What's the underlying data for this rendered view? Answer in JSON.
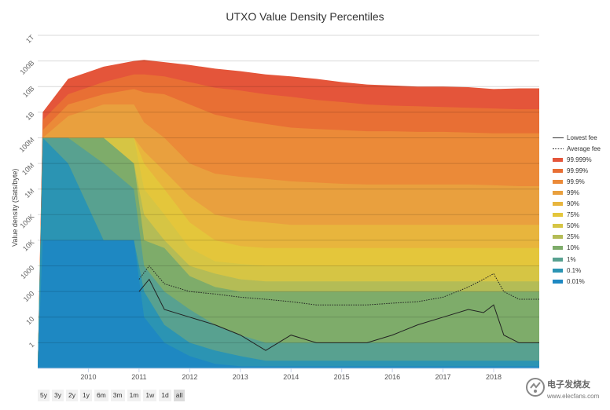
{
  "chart_data": {
    "type": "area",
    "title": "UTXO Value Density Percentiles",
    "ylabel": "Value density (Sats/byte)",
    "xlabel": "",
    "yscale": "log",
    "ylim": [
      0.1,
      1000000000000
    ],
    "y_ticks": [
      {
        "label": "1",
        "value": 1
      },
      {
        "label": "10",
        "value": 10
      },
      {
        "label": "100",
        "value": 100
      },
      {
        "label": "1000",
        "value": 1000
      },
      {
        "label": "10K",
        "value": 10000
      },
      {
        "label": "100K",
        "value": 100000
      },
      {
        "label": "1M",
        "value": 1000000
      },
      {
        "label": "10M",
        "value": 10000000
      },
      {
        "label": "100M",
        "value": 100000000
      },
      {
        "label": "1B",
        "value": 1000000000
      },
      {
        "label": "10B",
        "value": 10000000000
      },
      {
        "label": "100B",
        "value": 100000000000
      },
      {
        "label": "1T",
        "value": 1000000000000
      }
    ],
    "xlim": [
      2009.0,
      2018.9
    ],
    "x_ticks": [
      "2010",
      "2011",
      "2012",
      "2013",
      "2014",
      "2015",
      "2016",
      "2017",
      "2018"
    ],
    "x_tick_values": [
      2010,
      2011,
      2012,
      2013,
      2014,
      2015,
      2016,
      2017,
      2018
    ],
    "sample_years": [
      2009.0,
      2009.1,
      2009.6,
      2010.3,
      2010.9,
      2011.1,
      2011.5,
      2012.0,
      2012.5,
      2013.0,
      2013.5,
      2014.0,
      2014.5,
      2015.0,
      2015.5,
      2016.0,
      2016.5,
      2017.0,
      2017.5,
      2018.0,
      2018.5,
      2018.9
    ],
    "bands": [
      {
        "name": "99.999%",
        "color": "#e4553a",
        "values": [
          0.1,
          1000000000,
          20000000000,
          60000000000,
          100000000000,
          110000000000,
          90000000000,
          70000000000,
          50000000000,
          40000000000,
          30000000000,
          25000000000,
          20000000000,
          15000000000,
          12000000000,
          11000000000,
          10000000000,
          10000000000,
          9500000000,
          8000000000,
          8500000000,
          8500000000
        ]
      },
      {
        "name": "99.99%",
        "color": "#e86f34",
        "values": [
          0.1,
          500000000,
          5000000000,
          15000000000,
          30000000000,
          30000000000,
          25000000000,
          15000000000,
          9000000000,
          7000000000,
          5000000000,
          4000000000,
          3000000000,
          2500000000,
          2000000000,
          1800000000,
          1700000000,
          1600000000,
          1500000000,
          1400000000,
          1300000000,
          1300000000
        ]
      },
      {
        "name": "99.9%",
        "color": "#eb8a38",
        "values": [
          0.1,
          200000000,
          2000000000,
          5000000000,
          8000000000,
          6000000000,
          5000000000,
          2000000000,
          800000000,
          500000000,
          350000000,
          250000000,
          220000000,
          200000000,
          180000000,
          180000000,
          170000000,
          170000000,
          160000000,
          150000000,
          150000000,
          150000000
        ]
      },
      {
        "name": "99%",
        "color": "#e9a03e",
        "values": [
          0.1,
          100000000,
          700000000,
          2000000000,
          2000000000,
          400000000,
          100000000,
          10000000,
          4000000,
          3000000,
          2500000,
          2000000,
          1800000,
          1600000,
          1500000,
          1500000,
          1500000,
          1500000,
          1500000,
          1400000,
          1300000,
          1300000
        ]
      },
      {
        "name": "90%",
        "color": "#e8b53d",
        "values": [
          0.1,
          100000000,
          100000000,
          100000000,
          100000000,
          30000000,
          5000000,
          500000,
          100000,
          60000,
          50000,
          40000,
          40000,
          40000,
          40000,
          40000,
          40000,
          40000,
          40000,
          40000,
          40000,
          40000
        ]
      },
      {
        "name": "75%",
        "color": "#e4c63b",
        "values": [
          0.1,
          100000000,
          100000000,
          100000000,
          100000000,
          10000000,
          1000000,
          50000,
          10000,
          6000,
          5000,
          5000,
          5000,
          5000,
          5000,
          5000,
          5000,
          5000,
          5000,
          5000,
          5000,
          5000
        ]
      },
      {
        "name": "50%",
        "color": "#d6c544",
        "values": [
          0.1,
          100000000,
          100000000,
          100000000,
          100000000,
          1000000,
          100000,
          5000,
          1500,
          1200,
          1000,
          1000,
          1000,
          1000,
          1000,
          1000,
          1000,
          1000,
          1000,
          1000,
          1000,
          1000
        ]
      },
      {
        "name": "25%",
        "color": "#b4bc56",
        "values": [
          0.1,
          100000000,
          100000000,
          100000000,
          10000000,
          100000,
          10000,
          1000,
          500,
          300,
          250,
          250,
          250,
          250,
          250,
          250,
          250,
          250,
          250,
          250,
          250,
          250
        ]
      },
      {
        "name": "10%",
        "color": "#7eac6a",
        "values": [
          0.1,
          100000000,
          100000000,
          100000000,
          10000000,
          10000,
          5000,
          400,
          150,
          100,
          100,
          100,
          100,
          100,
          100,
          100,
          100,
          100,
          100,
          100,
          100,
          100
        ]
      },
      {
        "name": "1%",
        "color": "#58a190",
        "values": [
          0.1,
          100000000,
          100000000,
          10000000,
          1000000,
          1000,
          100,
          20,
          5,
          2,
          1,
          1,
          1,
          1,
          1,
          1,
          1,
          1,
          1,
          1,
          1,
          1
        ]
      },
      {
        "name": "0.1%",
        "color": "#2b94b3",
        "values": [
          0.1,
          100000000,
          10000000,
          10000,
          10000,
          100,
          5,
          1,
          0.5,
          0.3,
          0.2,
          0.2,
          0.2,
          0.2,
          0.2,
          0.2,
          0.2,
          0.2,
          0.2,
          0.2,
          0.2,
          0.2
        ]
      },
      {
        "name": "0.01%",
        "color": "#1e88c2",
        "values": [
          0.1,
          10000,
          10000,
          10000,
          10000,
          10,
          1,
          0.3,
          0.15,
          0.12,
          0.12,
          0.12,
          0.12,
          0.12,
          0.12,
          0.12,
          0.12,
          0.12,
          0.12,
          0.12,
          0.12,
          0.12
        ]
      }
    ],
    "lines": [
      {
        "name": "Lowest fee",
        "style": "solid",
        "color": "#222222",
        "x": [
          2011.0,
          2011.2,
          2011.5,
          2012.0,
          2012.5,
          2013.0,
          2013.5,
          2014.0,
          2014.5,
          2015.0,
          2015.5,
          2016.0,
          2016.5,
          2017.0,
          2017.5,
          2017.8,
          2018.0,
          2018.2,
          2018.5,
          2018.9
        ],
        "y": [
          100,
          300,
          20,
          10,
          5,
          2,
          0.5,
          2,
          1,
          1,
          1,
          2,
          5,
          10,
          20,
          15,
          30,
          2,
          1,
          1
        ]
      },
      {
        "name": "Average fee",
        "style": "dotted",
        "color": "#222222",
        "x": [
          2011.0,
          2011.2,
          2011.5,
          2012.0,
          2012.5,
          2013.0,
          2013.5,
          2014.0,
          2014.5,
          2015.0,
          2015.5,
          2016.0,
          2016.5,
          2017.0,
          2017.5,
          2017.8,
          2018.0,
          2018.2,
          2018.5,
          2018.9
        ],
        "y": [
          300,
          1000,
          200,
          100,
          80,
          60,
          50,
          40,
          30,
          30,
          30,
          35,
          40,
          60,
          150,
          300,
          500,
          100,
          50,
          50
        ]
      }
    ],
    "legend_position": "right",
    "grid": true
  },
  "range_selector": {
    "buttons": [
      "5y",
      "3y",
      "2y",
      "1y",
      "6m",
      "3m",
      "1m",
      "1w",
      "1d",
      "all"
    ],
    "selected": "all"
  },
  "watermark": {
    "name": "电子发烧友",
    "url": "www.elecfans.com"
  }
}
